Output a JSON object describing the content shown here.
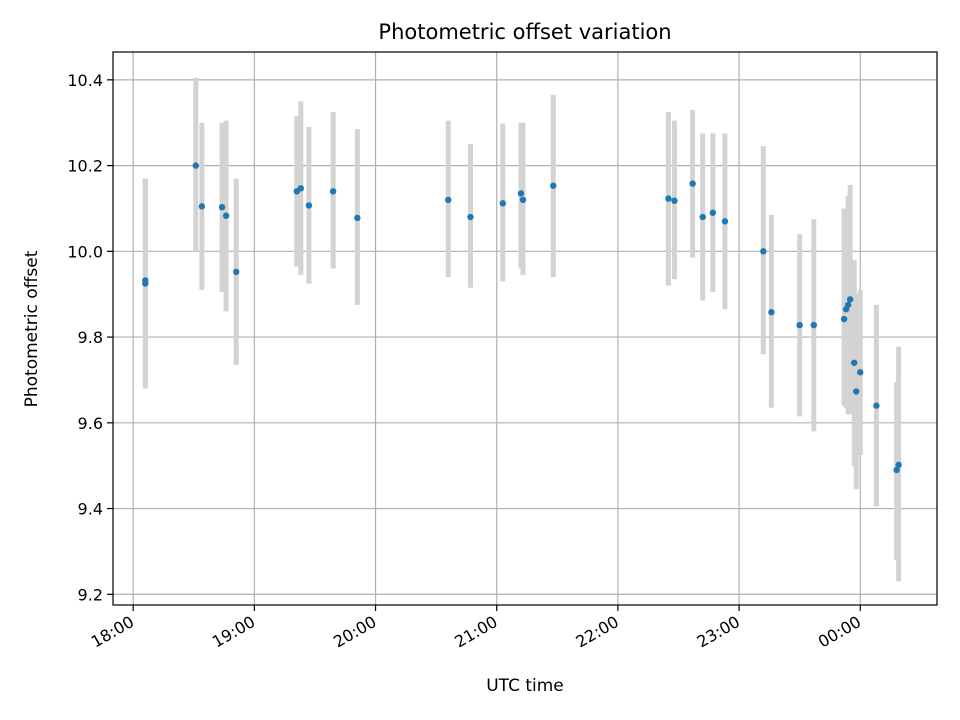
{
  "chart_data": {
    "type": "scatter",
    "title": "Photometric offset variation",
    "xlabel": "UTC time",
    "ylabel": "Photometric offset",
    "xlim": [
      "17:50",
      "24:38"
    ],
    "ylim": [
      9.175,
      10.465
    ],
    "x_ticks": [
      {
        "value": "18:00",
        "label": "18:00"
      },
      {
        "value": "19:00",
        "label": "19:00"
      },
      {
        "value": "20:00",
        "label": "20:00"
      },
      {
        "value": "21:00",
        "label": "21:00"
      },
      {
        "value": "22:00",
        "label": "22:00"
      },
      {
        "value": "23:00",
        "label": "23:00"
      },
      {
        "value": "24:00",
        "label": "00:00"
      }
    ],
    "y_ticks": [
      {
        "value": 9.2,
        "label": "9.2"
      },
      {
        "value": 9.4,
        "label": "9.4"
      },
      {
        "value": 9.6,
        "label": "9.6"
      },
      {
        "value": 9.8,
        "label": "9.8"
      },
      {
        "value": 10.0,
        "label": "10.0"
      },
      {
        "value": 10.2,
        "label": "10.2"
      },
      {
        "value": 10.4,
        "label": "10.4"
      }
    ],
    "grid": true,
    "marker_color": "#1f77b4",
    "errorbar_color": "#d3d3d3",
    "points": [
      {
        "time": "18:06",
        "y": 9.925,
        "low": 9.68,
        "high": 10.17
      },
      {
        "time": "18:06",
        "y": 9.932,
        "low": 9.69,
        "high": 10.17
      },
      {
        "time": "18:31",
        "y": 10.2,
        "low": 10.0,
        "high": 10.405
      },
      {
        "time": "18:34",
        "y": 10.105,
        "low": 9.91,
        "high": 10.3
      },
      {
        "time": "18:44",
        "y": 10.103,
        "low": 9.905,
        "high": 10.3
      },
      {
        "time": "18:46",
        "y": 10.083,
        "low": 9.86,
        "high": 10.305
      },
      {
        "time": "18:51",
        "y": 9.952,
        "low": 9.735,
        "high": 10.17
      },
      {
        "time": "19:21",
        "y": 10.14,
        "low": 9.965,
        "high": 10.315
      },
      {
        "time": "19:23",
        "y": 10.147,
        "low": 9.945,
        "high": 10.35
      },
      {
        "time": "19:27",
        "y": 10.107,
        "low": 9.925,
        "high": 10.29
      },
      {
        "time": "19:39",
        "y": 10.14,
        "low": 9.96,
        "high": 10.325
      },
      {
        "time": "19:51",
        "y": 10.078,
        "low": 9.875,
        "high": 10.285
      },
      {
        "time": "20:36",
        "y": 10.12,
        "low": 9.94,
        "high": 10.305
      },
      {
        "time": "20:47",
        "y": 10.08,
        "low": 9.915,
        "high": 10.25
      },
      {
        "time": "21:03",
        "y": 10.112,
        "low": 9.93,
        "high": 10.298
      },
      {
        "time": "21:12",
        "y": 10.135,
        "low": 9.96,
        "high": 10.3
      },
      {
        "time": "21:13",
        "y": 10.12,
        "low": 9.945,
        "high": 10.3
      },
      {
        "time": "21:28",
        "y": 10.153,
        "low": 9.94,
        "high": 10.365
      },
      {
        "time": "22:25",
        "y": 10.123,
        "low": 9.92,
        "high": 10.325
      },
      {
        "time": "22:28",
        "y": 10.118,
        "low": 9.935,
        "high": 10.305
      },
      {
        "time": "22:37",
        "y": 10.158,
        "low": 9.985,
        "high": 10.33
      },
      {
        "time": "22:42",
        "y": 10.08,
        "low": 9.885,
        "high": 10.275
      },
      {
        "time": "22:47",
        "y": 10.09,
        "low": 9.905,
        "high": 10.275
      },
      {
        "time": "22:53",
        "y": 10.07,
        "low": 9.865,
        "high": 10.275
      },
      {
        "time": "23:12",
        "y": 10.0,
        "low": 9.76,
        "high": 10.245
      },
      {
        "time": "23:16",
        "y": 9.858,
        "low": 9.635,
        "high": 10.085
      },
      {
        "time": "23:30",
        "y": 9.828,
        "low": 9.615,
        "high": 10.04
      },
      {
        "time": "23:37",
        "y": 9.828,
        "low": 9.58,
        "high": 10.075
      },
      {
        "time": "23:52",
        "y": 9.842,
        "low": 9.64,
        "high": 10.1
      },
      {
        "time": "23:53",
        "y": 9.865,
        "low": 9.635,
        "high": 10.1
      },
      {
        "time": "23:54",
        "y": 9.875,
        "low": 9.62,
        "high": 10.13
      },
      {
        "time": "23:55",
        "y": 9.888,
        "low": 9.62,
        "high": 10.155
      },
      {
        "time": "23:57",
        "y": 9.74,
        "low": 9.5,
        "high": 9.98
      },
      {
        "time": "23:58",
        "y": 9.673,
        "low": 9.445,
        "high": 9.9
      },
      {
        "time": "24:00",
        "y": 9.718,
        "low": 9.525,
        "high": 9.91
      },
      {
        "time": "24:08",
        "y": 9.64,
        "low": 9.405,
        "high": 9.875
      },
      {
        "time": "24:18",
        "y": 9.49,
        "low": 9.28,
        "high": 9.695
      },
      {
        "time": "24:19",
        "y": 9.502,
        "low": 9.23,
        "high": 9.778
      }
    ]
  }
}
